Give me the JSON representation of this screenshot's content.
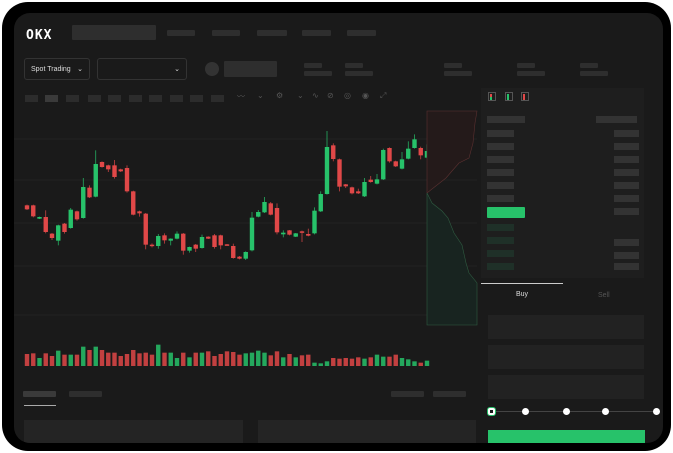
{
  "header": {
    "logo": "OKX",
    "nav_items": [
      "",
      "",
      "",
      "",
      ""
    ]
  },
  "market_bar": {
    "mode_selector": "Spot Trading",
    "pair_selector": ""
  },
  "trade_panel": {
    "tabs": [
      "Buy",
      "Sell"
    ],
    "active_tab": "Buy",
    "slider_level_percent": 0
  },
  "colors": {
    "up": "#27c26a",
    "down": "#e04848",
    "background": "#1a1a1a"
  },
  "icons": [
    "logo",
    "chevron-down-icon",
    "indicator-icon",
    "settings-icon",
    "draw-icon",
    "camera-icon",
    "target-icon",
    "fullscreen-icon",
    "orderbook-both-icon",
    "orderbook-buy-icon",
    "orderbook-sell-icon"
  ],
  "chart_data": {
    "type": "candlestick",
    "title": "",
    "xlabel": "",
    "ylabel": "",
    "grid": true,
    "candles": [
      [
        170,
        158,
        172,
        156
      ],
      [
        170,
        137,
        172,
        134
      ],
      [
        130,
        135,
        136,
        129
      ],
      [
        135,
        90,
        155,
        86
      ],
      [
        85,
        72,
        87,
        66
      ],
      [
        64,
        110,
        112,
        50
      ],
      [
        115,
        90,
        117,
        85
      ],
      [
        102,
        157,
        162,
        100
      ],
      [
        152,
        128,
        154,
        124
      ],
      [
        132,
        225,
        252,
        130
      ],
      [
        223,
        194,
        230,
        192
      ],
      [
        196,
        294,
        335,
        194
      ],
      [
        300,
        285,
        302,
        283
      ],
      [
        290,
        278,
        292,
        270
      ],
      [
        290,
        255,
        306,
        250
      ],
      [
        278,
        272,
        280,
        270
      ],
      [
        282,
        212,
        290,
        208
      ],
      [
        212,
        142,
        214,
        140
      ],
      [
        152,
        146,
        154,
        136
      ],
      [
        145,
        52,
        147,
        38
      ],
      [
        52,
        48,
        56,
        44
      ],
      [
        48,
        78,
        84,
        40
      ],
      [
        80,
        65,
        86,
        55
      ],
      [
        64,
        70,
        71,
        50
      ],
      [
        70,
        85,
        92,
        68
      ],
      [
        85,
        34,
        87,
        22
      ],
      [
        34,
        45,
        46,
        28
      ],
      [
        52,
        40,
        54,
        30
      ],
      [
        42,
        75,
        82,
        40
      ],
      [
        76,
        70,
        77,
        69
      ],
      [
        80,
        45,
        84,
        40
      ],
      [
        80,
        50,
        82,
        38
      ],
      [
        53,
        50,
        54,
        49
      ],
      [
        48,
        12,
        55,
        10
      ],
      [
        16,
        10,
        18,
        8
      ],
      [
        10,
        30,
        32,
        6
      ],
      [
        35,
        133,
        150,
        32
      ],
      [
        136,
        150,
        156,
        134
      ],
      [
        149,
        180,
        195,
        147
      ],
      [
        176,
        142,
        180,
        140
      ],
      [
        162,
        89,
        176,
        83
      ],
      [
        83,
        88,
        95,
        74
      ],
      [
        95,
        82,
        96,
        80
      ],
      [
        76,
        86,
        87,
        75
      ],
      [
        92,
        90,
        94,
        60
      ],
      [
        84,
        79,
        100,
        77
      ],
      [
        86,
        154,
        164,
        83
      ],
      [
        152,
        204,
        212,
        150
      ],
      [
        204,
        345,
        393,
        202
      ],
      [
        350,
        309,
        356,
        302
      ],
      [
        308,
        226,
        310,
        212
      ],
      [
        233,
        227,
        234,
        222
      ],
      [
        224,
        206,
        226,
        203
      ],
      [
        212,
        206,
        220,
        204
      ],
      [
        197,
        240,
        252,
        195
      ],
      [
        247,
        240,
        258,
        238
      ],
      [
        235,
        248,
        264,
        233
      ],
      [
        248,
        336,
        340,
        246
      ],
      [
        342,
        302,
        344,
        298
      ],
      [
        302,
        287,
        304,
        285
      ],
      [
        280,
        308,
        330,
        278
      ],
      [
        310,
        340,
        362,
        308
      ],
      [
        342,
        368,
        383,
        340
      ],
      [
        342,
        320,
        346,
        308
      ],
      [
        313,
        333,
        353,
        311
      ]
    ],
    "volumes": [
      36,
      38,
      24,
      38,
      30,
      46,
      34,
      34,
      34,
      58,
      48,
      58,
      48,
      40,
      40,
      30,
      36,
      48,
      38,
      40,
      34,
      64,
      40,
      40,
      24,
      40,
      26,
      40,
      40,
      44,
      30,
      36,
      44,
      42,
      34,
      38,
      40,
      46,
      40,
      32,
      44,
      26,
      36,
      26,
      32,
      34,
      10,
      8,
      14,
      24,
      22,
      24,
      22,
      26,
      22,
      26,
      34,
      28,
      28,
      34,
      24,
      20,
      14,
      10,
      16
    ]
  }
}
